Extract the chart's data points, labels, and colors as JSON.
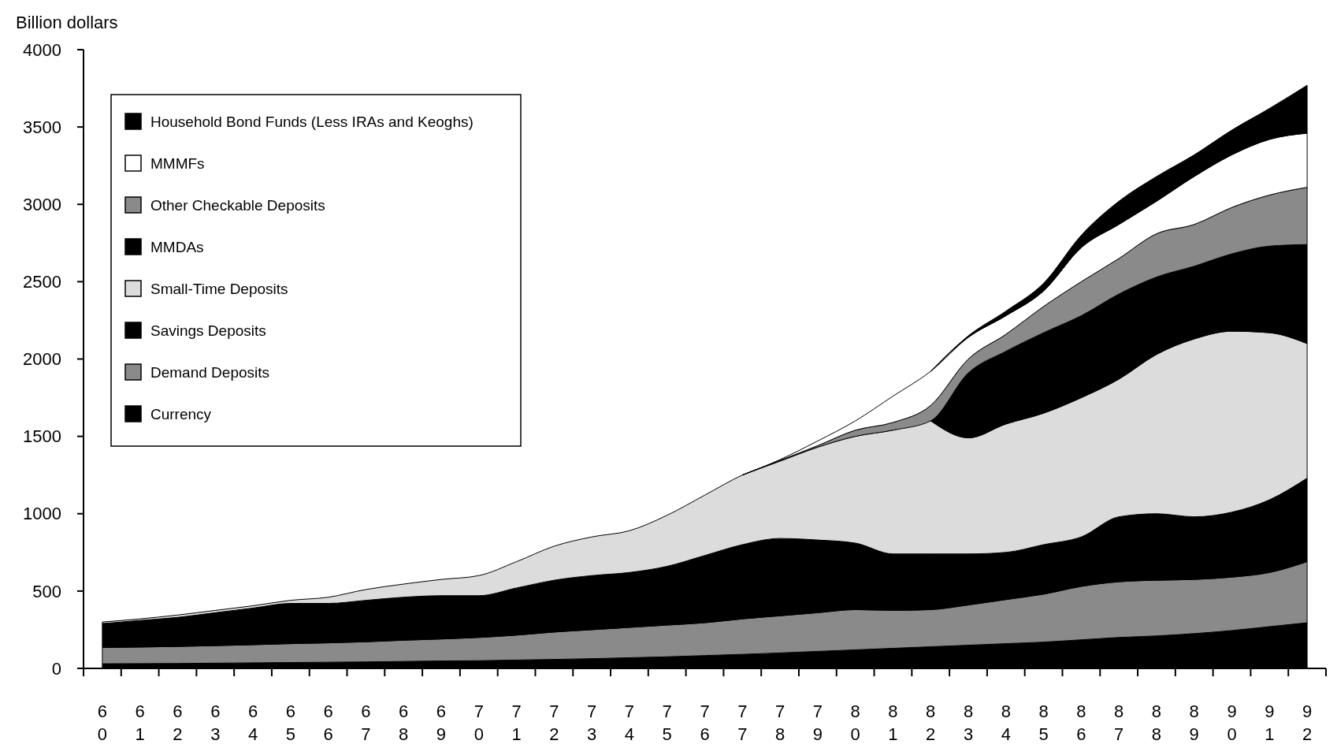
{
  "chart_data": {
    "type": "area",
    "stacked": true,
    "ylabel": "Billion dollars",
    "categories": [
      "60",
      "61",
      "62",
      "63",
      "64",
      "65",
      "66",
      "67",
      "68",
      "69",
      "70",
      "71",
      "72",
      "73",
      "74",
      "75",
      "76",
      "77",
      "78",
      "79",
      "80",
      "81",
      "82",
      "83",
      "84",
      "85",
      "86",
      "87",
      "88",
      "89",
      "90",
      "91",
      "92"
    ],
    "ylim": [
      0,
      4000
    ],
    "yticks": [
      0,
      500,
      1000,
      1500,
      2000,
      2500,
      3000,
      3500,
      4000
    ],
    "grid": false,
    "legend": "top left",
    "series": [
      {
        "name": "Currency",
        "color": "#000000",
        "values": [
          30,
          31,
          32,
          34,
          36,
          38,
          40,
          42,
          45,
          48,
          50,
          54,
          58,
          63,
          69,
          75,
          83,
          91,
          100,
          110,
          120,
          130,
          140,
          150,
          160,
          170,
          185,
          200,
          210,
          225,
          245,
          270,
          295
        ]
      },
      {
        "name": "Demand Deposits",
        "color": "#8a8a8a",
        "values": [
          105,
          107,
          110,
          113,
          117,
          122,
          125,
          130,
          137,
          142,
          150,
          161,
          177,
          187,
          196,
          205,
          212,
          229,
          240,
          250,
          260,
          245,
          240,
          260,
          285,
          310,
          345,
          360,
          360,
          350,
          345,
          350,
          395
        ]
      },
      {
        "name": "Savings Deposits",
        "color": "#000000",
        "values": [
          155,
          172,
          188,
          213,
          237,
          260,
          255,
          268,
          278,
          280,
          270,
          305,
          335,
          350,
          355,
          380,
          435,
          480,
          500,
          470,
          430,
          365,
          360,
          330,
          305,
          320,
          320,
          420,
          430,
          405,
          420,
          470,
          540
        ]
      },
      {
        "name": "Small-Time Deposits",
        "color": "#dcdcdc",
        "values": [
          10,
          10,
          15,
          15,
          15,
          20,
          40,
          70,
          85,
          105,
          130,
          170,
          220,
          250,
          270,
          330,
          390,
          450,
          500,
          600,
          690,
          800,
          860,
          750,
          830,
          850,
          900,
          890,
          1030,
          1150,
          1170,
          1080,
          870
        ]
      },
      {
        "name": "MMDAs",
        "color": "#000000",
        "values": [
          null,
          null,
          null,
          null,
          null,
          null,
          null,
          null,
          null,
          null,
          null,
          null,
          null,
          null,
          null,
          null,
          null,
          null,
          null,
          null,
          null,
          null,
          0,
          420,
          470,
          520,
          530,
          550,
          500,
          470,
          500,
          560,
          640
        ]
      },
      {
        "name": "Other Checkable Deposits",
        "color": "#8a8a8a",
        "values": [
          null,
          null,
          null,
          null,
          null,
          null,
          null,
          null,
          null,
          null,
          null,
          null,
          null,
          null,
          null,
          null,
          null,
          0,
          5,
          10,
          40,
          50,
          100,
          90,
          110,
          170,
          220,
          230,
          280,
          270,
          300,
          330,
          370
        ]
      },
      {
        "name": "MMMFs",
        "color": "#ffffff",
        "values": [
          null,
          null,
          null,
          null,
          null,
          null,
          null,
          null,
          null,
          null,
          null,
          null,
          null,
          null,
          null,
          null,
          null,
          0,
          5,
          30,
          60,
          170,
          220,
          140,
          120,
          100,
          220,
          220,
          210,
          310,
          340,
          360,
          350
        ]
      },
      {
        "name": "Household Bond Funds (Less IRAs and Keoghs)",
        "color": "#000000",
        "values": [
          null,
          null,
          null,
          null,
          null,
          null,
          null,
          null,
          null,
          null,
          null,
          null,
          null,
          null,
          null,
          null,
          null,
          null,
          null,
          null,
          null,
          null,
          0,
          10,
          30,
          50,
          80,
          150,
          160,
          140,
          160,
          200,
          310
        ]
      }
    ]
  }
}
